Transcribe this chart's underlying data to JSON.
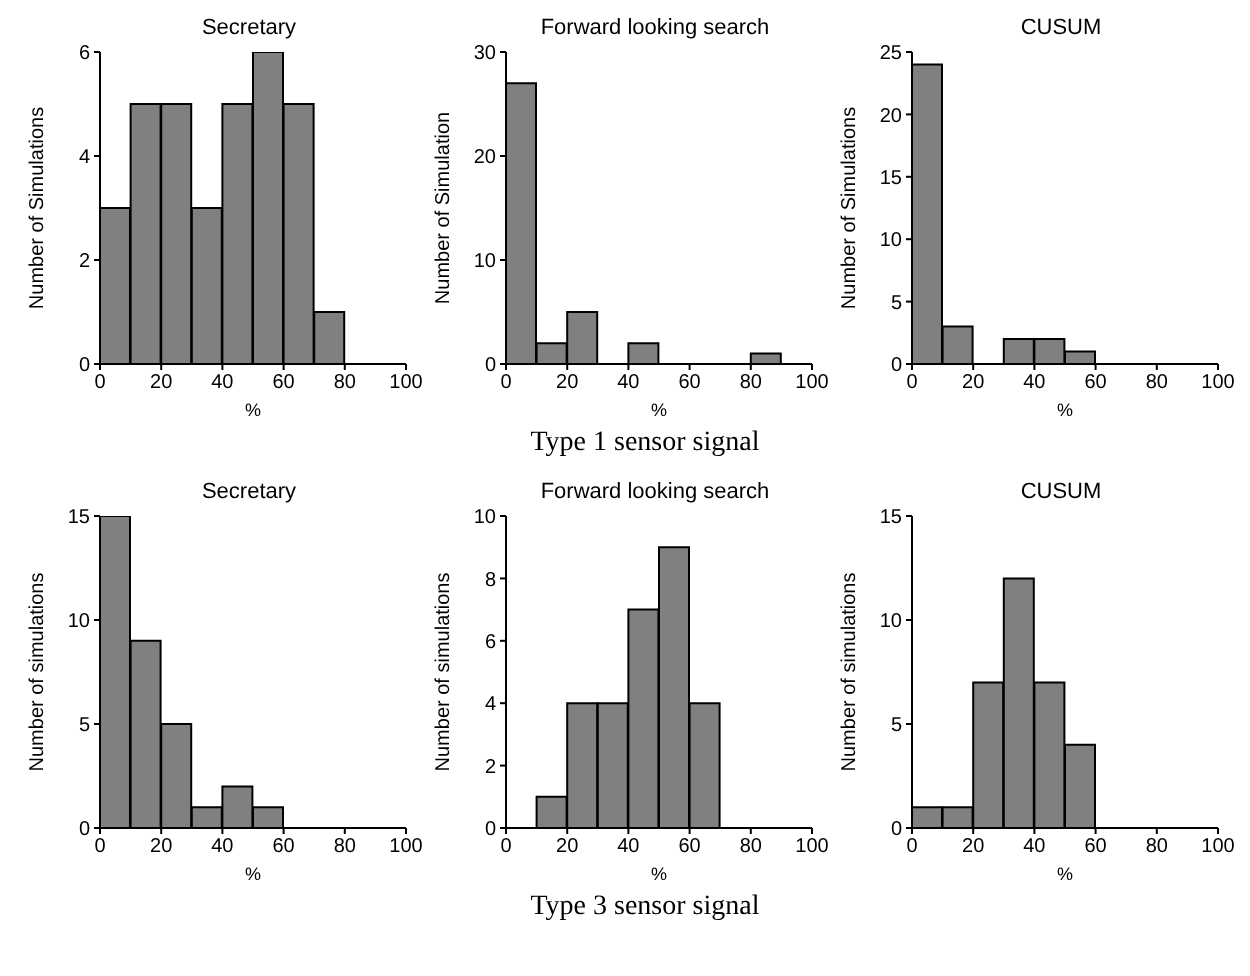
{
  "chart_data": [
    {
      "type": "histogram",
      "title": "Secretary",
      "xlabel": "%",
      "ylabel": "Number of Simulations",
      "bins": [
        0,
        10,
        20,
        30,
        40,
        50,
        60,
        70,
        80,
        90,
        100
      ],
      "values": [
        3,
        5,
        5,
        3,
        5,
        6,
        5,
        1,
        0,
        0
      ],
      "color": "#808080",
      "xlim": [
        0,
        100
      ],
      "xticks": [
        0,
        20,
        40,
        60,
        80,
        100
      ],
      "ylim": [
        0,
        6
      ],
      "yticks": [
        0,
        2,
        4,
        6
      ],
      "grid": false
    },
    {
      "type": "histogram",
      "title": "Forward looking search",
      "xlabel": "%",
      "ylabel": "Number of Simulation",
      "bins": [
        0,
        10,
        20,
        30,
        40,
        50,
        60,
        70,
        80,
        90,
        100
      ],
      "values": [
        27,
        2,
        5,
        0,
        2,
        0,
        0,
        0,
        1,
        0
      ],
      "color": "#808080",
      "xlim": [
        0,
        100
      ],
      "xticks": [
        0,
        20,
        40,
        60,
        80,
        100
      ],
      "ylim": [
        0,
        30
      ],
      "yticks": [
        0,
        10,
        20,
        30
      ],
      "grid": false,
      "annotations": [
        "Type 1 sensor signal"
      ]
    },
    {
      "type": "histogram",
      "title": "CUSUM",
      "xlabel": "%",
      "ylabel": "Number of Simulations",
      "bins": [
        0,
        10,
        20,
        30,
        40,
        50,
        60,
        70,
        80,
        90,
        100
      ],
      "values": [
        24,
        3,
        0,
        2,
        2,
        1,
        0,
        0,
        0,
        0
      ],
      "color": "#808080",
      "xlim": [
        0,
        100
      ],
      "xticks": [
        0,
        20,
        40,
        60,
        80,
        100
      ],
      "ylim": [
        0,
        25
      ],
      "yticks": [
        0,
        5,
        10,
        15,
        20,
        25
      ],
      "grid": false
    },
    {
      "type": "histogram",
      "title": "Secretary",
      "xlabel": "%",
      "ylabel": "Number of simulations",
      "bins": [
        0,
        10,
        20,
        30,
        40,
        50,
        60,
        70,
        80,
        90,
        100
      ],
      "values": [
        15,
        9,
        5,
        1,
        2,
        1,
        0,
        0,
        0,
        0
      ],
      "color": "#808080",
      "xlim": [
        0,
        100
      ],
      "xticks": [
        0,
        20,
        40,
        60,
        80,
        100
      ],
      "ylim": [
        0,
        15
      ],
      "yticks": [
        0,
        5,
        10,
        15
      ],
      "grid": false
    },
    {
      "type": "histogram",
      "title": "Forward looking search",
      "xlabel": "%",
      "ylabel": "Number of simulations",
      "bins": [
        0,
        10,
        20,
        30,
        40,
        50,
        60,
        70,
        80,
        90,
        100
      ],
      "values": [
        0,
        1,
        4,
        4,
        7,
        9,
        4,
        0,
        0,
        0
      ],
      "color": "#808080",
      "xlim": [
        0,
        100
      ],
      "xticks": [
        0,
        20,
        40,
        60,
        80,
        100
      ],
      "ylim": [
        0,
        10
      ],
      "yticks": [
        0,
        2,
        4,
        6,
        8,
        10
      ],
      "grid": false,
      "annotations": [
        "Type 3 sensor signal"
      ]
    },
    {
      "type": "histogram",
      "title": "CUSUM",
      "xlabel": "%",
      "ylabel": "Number of simulations",
      "bins": [
        0,
        10,
        20,
        30,
        40,
        50,
        60,
        70,
        80,
        90,
        100
      ],
      "values": [
        1,
        1,
        7,
        12,
        7,
        4,
        0,
        0,
        0,
        0
      ],
      "color": "#808080",
      "xlim": [
        0,
        100
      ],
      "xticks": [
        0,
        20,
        40,
        60,
        80,
        100
      ],
      "ylim": [
        0,
        15
      ],
      "yticks": [
        0,
        5,
        10,
        15
      ],
      "grid": false
    }
  ]
}
